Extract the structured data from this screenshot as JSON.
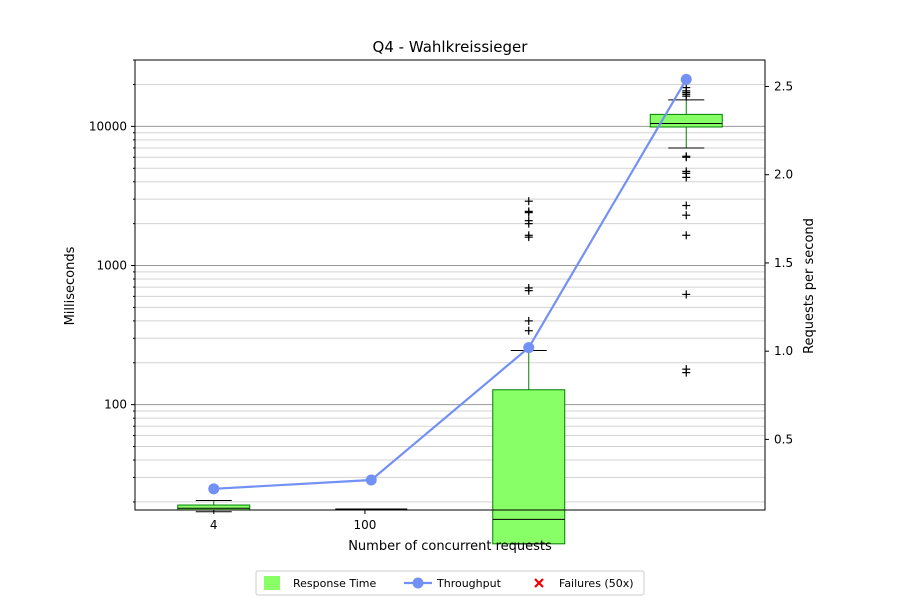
{
  "chart_data": {
    "type": "box+line",
    "title": "Q4 - Wahlkreissieger",
    "xlabel": "Number of concurrent requests",
    "ylabel_left": "Milliseconds",
    "ylabel_right": "Requests per second",
    "x_ticks": [
      {
        "x": 4,
        "label": "4"
      },
      {
        "x": 100,
        "label": "100"
      }
    ],
    "x_range": [
      -46,
      354
    ],
    "y_left_scale": "log",
    "y_left_range": [
      17.5,
      30000
    ],
    "y_left_ticks": [
      {
        "value": 100,
        "label": "100"
      },
      {
        "value": 1000,
        "label": "1000"
      },
      {
        "value": 10000,
        "label": "10000"
      }
    ],
    "y_right_range": [
      0.1,
      2.65
    ],
    "y_right_ticks": [
      {
        "value": 0.5,
        "label": "0.5"
      },
      {
        "value": 1.0,
        "label": "1.0"
      },
      {
        "value": 1.5,
        "label": "1.5"
      },
      {
        "value": 2.0,
        "label": "2.0"
      },
      {
        "value": 2.5,
        "label": "2.5"
      }
    ],
    "grid": true,
    "boxes": [
      {
        "x": 4,
        "whisker_low": 17,
        "q1": 17.5,
        "median": 18,
        "q3": 19,
        "whisker_high": 20.5,
        "outliers": []
      },
      {
        "x": 104,
        "whisker_low": 17.8,
        "q1": 17.8,
        "median": 17.8,
        "q3": 17.8,
        "whisker_high": 17.8,
        "outliers": []
      },
      {
        "x": 204,
        "whisker_low": 10,
        "q1": 10,
        "median": 15,
        "q3": 128,
        "whisker_high": 245,
        "outliers": [
          340,
          400,
          660,
          690,
          1600,
          1650,
          2000,
          2100,
          2400,
          2450,
          2900
        ]
      },
      {
        "x": 304,
        "whisker_low": 7000,
        "q1": 9900,
        "median": 10500,
        "q3": 12200,
        "whisker_high": 15500,
        "outliers": [
          170,
          180,
          620,
          1650,
          2300,
          2700,
          4300,
          4600,
          4750,
          6000,
          6100,
          16500,
          17000,
          17500,
          18000,
          19000
        ]
      }
    ],
    "throughput": [
      {
        "x": 4,
        "value": 0.22
      },
      {
        "x": 104,
        "value": 0.27
      },
      {
        "x": 204,
        "value": 1.02
      },
      {
        "x": 304,
        "value": 2.54
      }
    ],
    "legend": {
      "placement": "bottom",
      "items": [
        {
          "label": "Response Time",
          "kind": "box"
        },
        {
          "label": "Throughput",
          "kind": "line"
        },
        {
          "label": "Failures (50x)",
          "kind": "cross"
        }
      ]
    },
    "colors": {
      "box_fill": "#88ff66",
      "box_edge": "#008000",
      "whisker": "#008000",
      "cap": "#000000",
      "median": "#000000",
      "throughput": "#7391f5",
      "failures": "#ee0000",
      "grid_major": "#999999",
      "grid_minor": "#d3d3d3"
    }
  }
}
